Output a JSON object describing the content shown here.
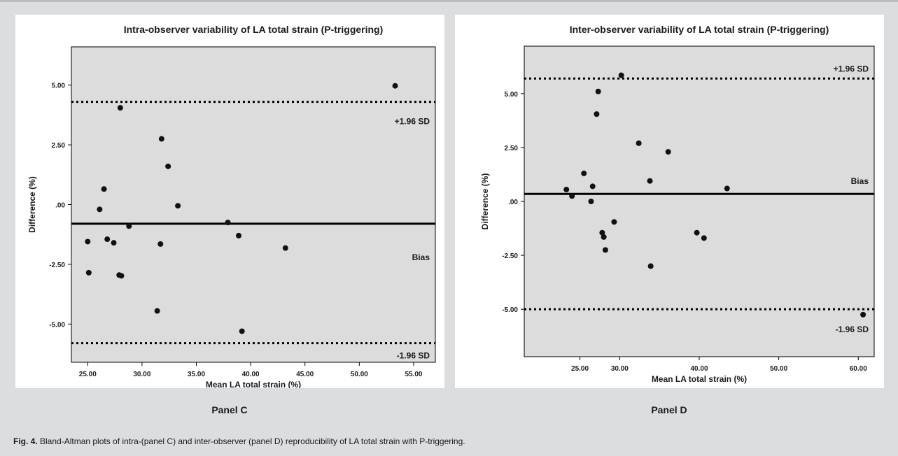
{
  "figure": {
    "caption_prefix": "Fig. 4.",
    "caption_text": " Bland-Altman plots of intra-(panel C) and inter-observer (panel D) reproducibility of LA total strain with P-triggering."
  },
  "chart_data": [
    {
      "type": "scatter",
      "panel": "Panel C",
      "title": "Intra-observer variability of LA total strain (P-triggering)",
      "xlabel": "Mean LA total strain (%)",
      "ylabel": "Difference (%)",
      "xlim": [
        23.5,
        57
      ],
      "ylim": [
        -6.6,
        6.6
      ],
      "xticks": [
        25,
        30,
        35,
        40,
        45,
        50,
        55
      ],
      "xtick_labels": [
        "25.00",
        "30.00",
        "35.00",
        "40.00",
        "45.00",
        "50.00",
        "55.00"
      ],
      "yticks": [
        -5,
        -2.5,
        0,
        2.5,
        5
      ],
      "ytick_labels": [
        "-5.00",
        "-2.50",
        ".00",
        "2.50",
        "5.00"
      ],
      "grid": false,
      "bias": -0.8,
      "upper_loa": 4.3,
      "lower_loa": -5.8,
      "annotations": [
        "+1.96 SD",
        "Bias",
        "-1.96 SD"
      ],
      "points": [
        {
          "x": 25.0,
          "y": -1.55
        },
        {
          "x": 25.1,
          "y": -2.85
        },
        {
          "x": 26.1,
          "y": -0.2
        },
        {
          "x": 26.5,
          "y": 0.65
        },
        {
          "x": 26.8,
          "y": -1.45
        },
        {
          "x": 27.4,
          "y": -1.6
        },
        {
          "x": 27.9,
          "y": -2.95
        },
        {
          "x": 28.0,
          "y": 4.05
        },
        {
          "x": 28.1,
          "y": -2.98
        },
        {
          "x": 28.8,
          "y": -0.9
        },
        {
          "x": 31.4,
          "y": -4.45
        },
        {
          "x": 31.7,
          "y": -1.65
        },
        {
          "x": 31.8,
          "y": 2.75
        },
        {
          "x": 32.4,
          "y": 1.6
        },
        {
          "x": 33.3,
          "y": -0.05
        },
        {
          "x": 37.9,
          "y": -0.75
        },
        {
          "x": 38.9,
          "y": -1.3
        },
        {
          "x": 39.2,
          "y": -5.3
        },
        {
          "x": 43.2,
          "y": -1.82
        },
        {
          "x": 53.3,
          "y": 4.97
        }
      ]
    },
    {
      "type": "scatter",
      "panel": "Panel D",
      "title": "Inter-observer variability of LA total strain (P-triggering)",
      "xlabel": "Mean LA total strain (%)",
      "ylabel": "Difference (%)",
      "xlim": [
        18,
        62
      ],
      "ylim": [
        -7.2,
        7.2
      ],
      "xticks": [
        25,
        30,
        40,
        50,
        60
      ],
      "xtick_labels": [
        "25.00",
        "30.00",
        "40.00",
        "50.00",
        "60.00"
      ],
      "yticks": [
        -5,
        -2.5,
        0,
        2.5,
        5
      ],
      "ytick_labels": [
        "-5.00",
        "-2.50",
        ".00",
        "2.50",
        "5.00"
      ],
      "grid": false,
      "bias": 0.35,
      "upper_loa": 5.7,
      "lower_loa": -5.0,
      "annotations": [
        "+1.96 SD",
        "Bias",
        "-1.96 SD"
      ],
      "points": [
        {
          "x": 23.3,
          "y": 0.55
        },
        {
          "x": 24.0,
          "y": 0.25
        },
        {
          "x": 25.5,
          "y": 1.3
        },
        {
          "x": 26.4,
          "y": 0.0
        },
        {
          "x": 26.6,
          "y": 0.7
        },
        {
          "x": 27.1,
          "y": 4.05
        },
        {
          "x": 27.3,
          "y": 5.1
        },
        {
          "x": 27.8,
          "y": -1.45
        },
        {
          "x": 28.0,
          "y": -1.65
        },
        {
          "x": 28.2,
          "y": -2.25
        },
        {
          "x": 29.3,
          "y": -0.95
        },
        {
          "x": 30.2,
          "y": 5.85
        },
        {
          "x": 32.4,
          "y": 2.7
        },
        {
          "x": 33.8,
          "y": 0.95
        },
        {
          "x": 33.9,
          "y": -3.0
        },
        {
          "x": 36.1,
          "y": 2.3
        },
        {
          "x": 39.7,
          "y": -1.45
        },
        {
          "x": 40.6,
          "y": -1.7
        },
        {
          "x": 43.5,
          "y": 0.6
        },
        {
          "x": 60.6,
          "y": -5.25
        }
      ]
    }
  ]
}
